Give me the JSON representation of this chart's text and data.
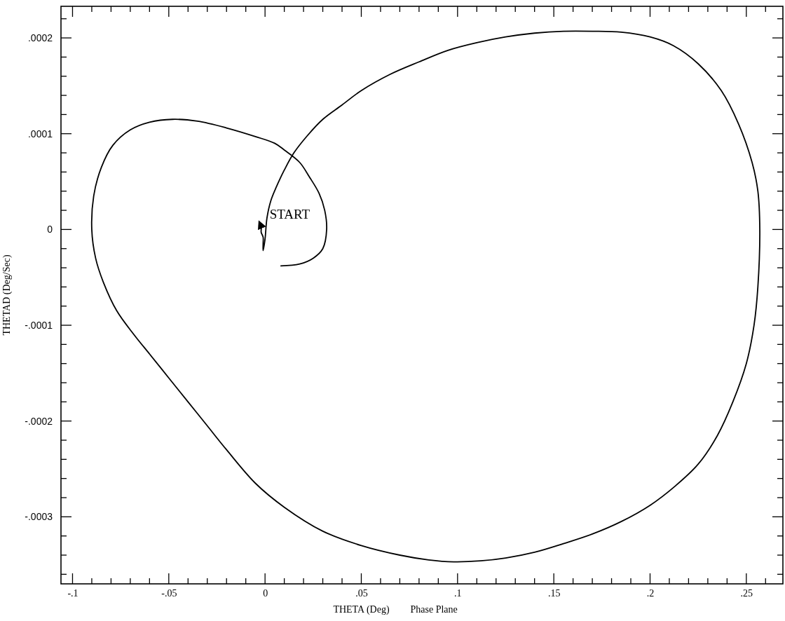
{
  "chart_data": {
    "type": "line",
    "title": "Phase Plane",
    "xlabel": "THETA (Deg)",
    "ylabel": "THETAD (Deg/Sec)",
    "xlim": [
      -0.106,
      0.269
    ],
    "ylim": [
      -0.00037,
      0.000233
    ],
    "xticks": [
      {
        "value": -0.1,
        "label": "-.1"
      },
      {
        "value": -0.09,
        "label": null
      },
      {
        "value": -0.08,
        "label": null
      },
      {
        "value": -0.07,
        "label": null
      },
      {
        "value": -0.06,
        "label": null
      },
      {
        "value": -0.05,
        "label": "-.05"
      },
      {
        "value": -0.04,
        "label": null
      },
      {
        "value": -0.03,
        "label": null
      },
      {
        "value": -0.02,
        "label": null
      },
      {
        "value": -0.01,
        "label": null
      },
      0,
      {
        "value": 0.01,
        "label": null
      },
      {
        "value": 0.02,
        "label": null
      },
      {
        "value": 0.03,
        "label": null
      },
      {
        "value": 0.04,
        "label": null
      },
      {
        "value": 0.05,
        "label": ".05"
      },
      {
        "value": 0.06,
        "label": null
      },
      {
        "value": 0.07,
        "label": null
      },
      {
        "value": 0.08,
        "label": null
      },
      {
        "value": 0.09,
        "label": null
      },
      {
        "value": 0.1,
        "label": ".1"
      },
      {
        "value": 0.11,
        "label": null
      },
      {
        "value": 0.12,
        "label": null
      },
      {
        "value": 0.13,
        "label": null
      },
      {
        "value": 0.14,
        "label": null
      },
      {
        "value": 0.15,
        "label": ".15"
      },
      {
        "value": 0.16,
        "label": null
      },
      {
        "value": 0.17,
        "label": null
      },
      {
        "value": 0.18,
        "label": null
      },
      {
        "value": 0.19,
        "label": null
      },
      {
        "value": 0.2,
        "label": ".2"
      },
      {
        "value": 0.21,
        "label": null
      },
      {
        "value": 0.22,
        "label": null
      },
      {
        "value": 0.23,
        "label": null
      },
      {
        "value": 0.24,
        "label": null
      },
      {
        "value": 0.25,
        "label": ".25"
      },
      {
        "value": 0.26,
        "label": null
      }
    ],
    "yticks": [
      {
        "value": -0.00036,
        "label": null
      },
      {
        "value": -0.00034,
        "label": null
      },
      {
        "value": -0.00032,
        "label": null
      },
      {
        "value": -0.0003,
        "label": "-.0003"
      },
      {
        "value": -0.00028,
        "label": null
      },
      {
        "value": -0.00026,
        "label": null
      },
      {
        "value": -0.00024,
        "label": null
      },
      {
        "value": -0.00022,
        "label": null
      },
      {
        "value": -0.0002,
        "label": "-.0002"
      },
      {
        "value": -0.00018,
        "label": null
      },
      {
        "value": -0.00016,
        "label": null
      },
      {
        "value": -0.00014,
        "label": null
      },
      {
        "value": -0.00012,
        "label": null
      },
      {
        "value": -0.0001,
        "label": "-.0001"
      },
      {
        "value": -8e-05,
        "label": null
      },
      {
        "value": -6e-05,
        "label": null
      },
      {
        "value": -4e-05,
        "label": null
      },
      {
        "value": -2e-05,
        "label": null
      },
      0,
      {
        "value": 2e-05,
        "label": null
      },
      {
        "value": 4e-05,
        "label": null
      },
      {
        "value": 6e-05,
        "label": null
      },
      {
        "value": 8e-05,
        "label": null
      },
      {
        "value": 0.0001,
        "label": ".0001"
      },
      {
        "value": 0.00012,
        "label": null
      },
      {
        "value": 0.00014,
        "label": null
      },
      {
        "value": 0.00016,
        "label": null
      },
      {
        "value": 0.00018,
        "label": null
      },
      {
        "value": 0.0002,
        "label": ".0002"
      },
      {
        "value": 0.00022,
        "label": null
      }
    ],
    "grid": false,
    "marker": "none",
    "line_style": "solid",
    "annotations": [
      {
        "text": "START",
        "x": -0.002,
        "y": 1e-05
      }
    ],
    "series": [
      {
        "color": "#000000",
        "x": [
          0.008,
          0.018,
          0.025,
          0.03,
          0.032,
          0.031,
          0.028,
          0.023,
          0.018,
          0.01,
          0.005,
          -0.005,
          -0.02,
          -0.035,
          -0.048,
          -0.06,
          -0.07,
          -0.079,
          -0.085,
          -0.089,
          -0.09,
          -0.088,
          -0.084,
          -0.077,
          -0.068,
          -0.06,
          -0.05,
          -0.04,
          -0.03,
          -0.02,
          -0.005,
          0.01,
          0.03,
          0.05,
          0.07,
          0.085,
          0.098,
          0.112,
          0.125,
          0.14,
          0.155,
          0.17,
          0.185,
          0.2,
          0.213,
          0.225,
          0.235,
          0.243,
          0.25,
          0.254,
          0.256,
          0.257,
          0.256,
          0.253,
          0.246,
          0.237,
          0.225,
          0.212,
          0.2,
          0.185,
          0.17,
          0.155,
          0.14,
          0.125,
          0.11,
          0.095,
          0.08,
          0.065,
          0.05,
          0.04,
          0.03,
          0.022,
          0.015,
          0.01,
          0.006,
          0.003,
          0.001,
          0.0,
          -0.001,
          -0.001,
          -0.001,
          -0.002,
          -0.002,
          -0.003
        ],
        "values": [
          -3.8e-05,
          -3.6e-05,
          -3e-05,
          -2e-05,
          0.0,
          2e-05,
          3.8e-05,
          5.5e-05,
          7e-05,
          8.3e-05,
          9e-05,
          9.7e-05,
          0.000106,
          0.000113,
          0.000115,
          0.000112,
          0.000104,
          8.8e-05,
          6.5e-05,
          3.5e-05,
          0.0,
          -3e-05,
          -5.5e-05,
          -8.5e-05,
          -0.00011,
          -0.00013,
          -0.000155,
          -0.00018,
          -0.000205,
          -0.00023,
          -0.000265,
          -0.00029,
          -0.000315,
          -0.00033,
          -0.00034,
          -0.000345,
          -0.000347,
          -0.000346,
          -0.000343,
          -0.000337,
          -0.000328,
          -0.000318,
          -0.000305,
          -0.000288,
          -0.000268,
          -0.000245,
          -0.000215,
          -0.00018,
          -0.00014,
          -0.0001,
          -6e-05,
          0.0,
          4e-05,
          7e-05,
          0.00011,
          0.000145,
          0.000173,
          0.000192,
          0.000201,
          0.000206,
          0.000207,
          0.000207,
          0.000205,
          0.000201,
          0.000195,
          0.000187,
          0.000175,
          0.000162,
          0.000145,
          0.00013,
          0.000115,
          9.8e-05,
          8e-05,
          6.2e-05,
          4.5e-05,
          3e-05,
          1.2e-05,
          -1e-05,
          -2.2e-05,
          -1.5e-05,
          -8e-06,
          -3e-06,
          2e-06,
          8e-06
        ]
      }
    ]
  }
}
